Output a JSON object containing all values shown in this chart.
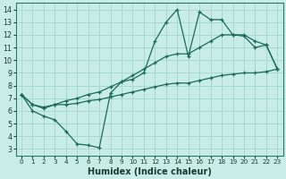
{
  "xlabel": "Humidex (Indice chaleur)",
  "ylabel": "",
  "xlim": [
    -0.5,
    23.5
  ],
  "ylim": [
    2.5,
    14.5
  ],
  "xticks": [
    0,
    1,
    2,
    3,
    4,
    5,
    6,
    7,
    8,
    9,
    10,
    11,
    12,
    13,
    14,
    15,
    16,
    17,
    18,
    19,
    20,
    21,
    22,
    23
  ],
  "yticks": [
    3,
    4,
    5,
    6,
    7,
    8,
    9,
    10,
    11,
    12,
    13,
    14
  ],
  "bg_color": "#c8ece6",
  "line_color": "#1a6b5a",
  "grid_color": "#a8d8d0",
  "series": [
    [
      7.3,
      6.0,
      5.6,
      5.3,
      4.4,
      3.4,
      3.3,
      3.1,
      7.4,
      8.3,
      8.5,
      9.0,
      11.5,
      13.0,
      14.0,
      10.3,
      13.8,
      13.2,
      13.2,
      12.0,
      11.9,
      11.0,
      11.2,
      9.3
    ],
    [
      7.3,
      6.5,
      6.2,
      6.5,
      6.8,
      7.0,
      7.3,
      7.5,
      7.9,
      8.3,
      8.8,
      9.3,
      9.8,
      10.3,
      10.5,
      10.5,
      11.0,
      11.5,
      12.0,
      12.0,
      12.0,
      11.5,
      11.2,
      9.3
    ],
    [
      7.3,
      6.5,
      6.3,
      6.5,
      6.5,
      6.6,
      6.8,
      6.9,
      7.1,
      7.3,
      7.5,
      7.7,
      7.9,
      8.1,
      8.2,
      8.2,
      8.4,
      8.6,
      8.8,
      8.9,
      9.0,
      9.0,
      9.1,
      9.3
    ]
  ]
}
